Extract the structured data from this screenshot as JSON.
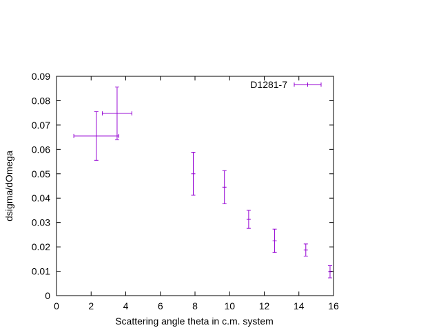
{
  "chart_data": {
    "type": "scatter",
    "title": "",
    "xlabel": "Scattering angle theta in c.m. system",
    "ylabel": "dsigma/dOmega",
    "xlim": [
      0,
      16
    ],
    "ylim": [
      0,
      0.09
    ],
    "x_ticks": [
      0,
      2,
      4,
      6,
      8,
      10,
      12,
      14,
      16
    ],
    "x_tick_labels": [
      "0",
      "2",
      "4",
      "6",
      "8",
      "10",
      "12",
      "14",
      "16"
    ],
    "y_ticks": [
      0,
      0.01,
      0.02,
      0.03,
      0.04,
      0.05,
      0.06,
      0.07,
      0.08,
      0.09
    ],
    "y_tick_labels": [
      "0",
      "0.01",
      "0.02",
      "0.03",
      "0.04",
      "0.05",
      "0.06",
      "0.07",
      "0.08",
      "0.09"
    ],
    "grid": false,
    "legend_position": "top-right",
    "series": [
      {
        "name": "D1281-7",
        "color": "#9400d3",
        "points": [
          {
            "x": 2.3,
            "y": 0.0655,
            "xerr": 1.3,
            "yerr": 0.01
          },
          {
            "x": 3.5,
            "y": 0.0748,
            "xerr": 0.85,
            "yerr": 0.0108
          },
          {
            "x": 7.9,
            "y": 0.05,
            "xerr": 0,
            "yerr": 0.0088
          },
          {
            "x": 9.7,
            "y": 0.0445,
            "xerr": 0,
            "yerr": 0.0068
          },
          {
            "x": 11.1,
            "y": 0.0313,
            "xerr": 0,
            "yerr": 0.0037
          },
          {
            "x": 12.6,
            "y": 0.0225,
            "xerr": 0,
            "yerr": 0.0048
          },
          {
            "x": 14.4,
            "y": 0.0187,
            "xerr": 0,
            "yerr": 0.0025
          },
          {
            "x": 15.8,
            "y": 0.0098,
            "xerr": 0,
            "yerr": 0.0025
          }
        ]
      }
    ]
  }
}
